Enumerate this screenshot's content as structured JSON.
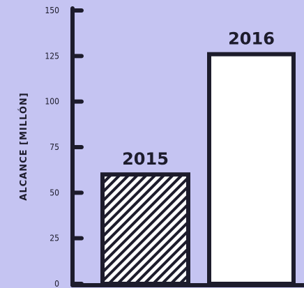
{
  "chart_data": {
    "type": "bar",
    "ylabel": "ALCANCE [MILLÓN]",
    "xlabel": "",
    "title": "",
    "ylim": [
      0,
      150
    ],
    "yticks": [
      0,
      25,
      50,
      75,
      100,
      125,
      150
    ],
    "categories": [
      "2015",
      "2016"
    ],
    "values": [
      60,
      126
    ],
    "bar_styles": [
      "hatched",
      "solid-white"
    ],
    "data_labels": [
      "2015",
      "2016"
    ],
    "colors": {
      "background": "#c5c4f2",
      "axis": "#1d1c2c",
      "bar_fill": "#ffffff",
      "hatch": "#1d1c2c"
    }
  }
}
